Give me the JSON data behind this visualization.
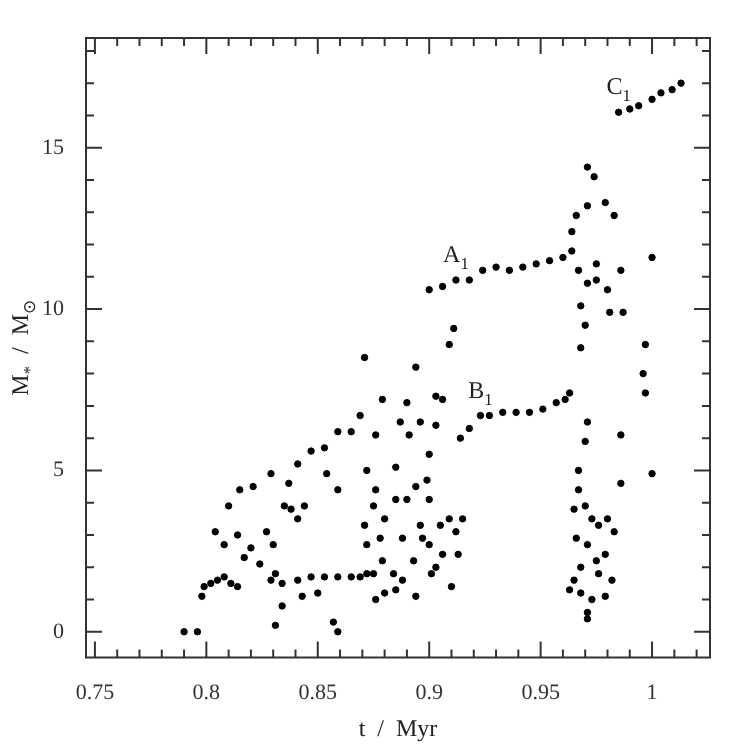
{
  "chart_data": {
    "type": "scatter",
    "xlabel": "t  /  Myr",
    "ylabel": "M$_{*}$  /  M$_{⊙}$",
    "marker": "circle",
    "legend": false,
    "grid": false,
    "xlim": [
      0.746,
      1.026
    ],
    "ylim": [
      -0.8,
      18.4
    ],
    "xticks": [
      0.75,
      {
        "value": 0.76,
        "label": null
      },
      {
        "value": 0.77,
        "label": null
      },
      {
        "value": 0.78,
        "label": null
      },
      {
        "value": 0.79,
        "label": null
      },
      0.8,
      {
        "value": 0.81,
        "label": null
      },
      {
        "value": 0.82,
        "label": null
      },
      {
        "value": 0.83,
        "label": null
      },
      {
        "value": 0.84,
        "label": null
      },
      0.85,
      {
        "value": 0.86,
        "label": null
      },
      {
        "value": 0.87,
        "label": null
      },
      {
        "value": 0.88,
        "label": null
      },
      {
        "value": 0.89,
        "label": null
      },
      0.9,
      {
        "value": 0.91,
        "label": null
      },
      {
        "value": 0.92,
        "label": null
      },
      {
        "value": 0.93,
        "label": null
      },
      {
        "value": 0.94,
        "label": null
      },
      0.95,
      {
        "value": 0.96,
        "label": null
      },
      {
        "value": 0.97,
        "label": null
      },
      {
        "value": 0.98,
        "label": null
      },
      {
        "value": 0.99,
        "label": null
      },
      1,
      {
        "value": 1.01,
        "label": null
      },
      {
        "value": 1.02,
        "label": null
      }
    ],
    "yticks": [
      0,
      {
        "value": 1,
        "label": null
      },
      {
        "value": 2,
        "label": null
      },
      {
        "value": 3,
        "label": null
      },
      {
        "value": 4,
        "label": null
      },
      5,
      {
        "value": 6,
        "label": null
      },
      {
        "value": 7,
        "label": null
      },
      {
        "value": 8,
        "label": null
      },
      {
        "value": 9,
        "label": null
      },
      10,
      {
        "value": 11,
        "label": null
      },
      {
        "value": 12,
        "label": null
      },
      {
        "value": 13,
        "label": null
      },
      {
        "value": 14,
        "label": null
      },
      15,
      {
        "value": 16,
        "label": null
      },
      {
        "value": 17,
        "label": null
      },
      {
        "value": 18,
        "label": null
      }
    ],
    "annotations": [
      {
        "text": "A$_{1}$",
        "x": 0.912,
        "y": 10.9
      },
      {
        "text": "B$_{1}$",
        "x": 0.923,
        "y": 6.7
      },
      {
        "text": "C$_{1}$",
        "x": 0.985,
        "y": 16.1
      }
    ],
    "series": [
      {
        "color": "#000000",
        "x": [
          0.79,
          0.796,
          0.798,
          0.799,
          0.802,
          0.805,
          0.808,
          0.811,
          0.814,
          0.804,
          0.81,
          0.815,
          0.821,
          0.829,
          0.841,
          0.847,
          0.853,
          0.859,
          0.865,
          0.869,
          0.871,
          0.808,
          0.814,
          0.817,
          0.82,
          0.824,
          0.827,
          0.83,
          0.831,
          0.829,
          0.831,
          0.834,
          0.835,
          0.838,
          0.841,
          0.844,
          0.837,
          0.834,
          0.841,
          0.847,
          0.853,
          0.859,
          0.865,
          0.869,
          0.872,
          0.859,
          0.857,
          0.85,
          0.854,
          0.859,
          0.843,
          0.871,
          0.875,
          0.876,
          0.88,
          0.885,
          0.89,
          0.894,
          0.899,
          0.9,
          0.872,
          0.878,
          0.879,
          0.884,
          0.888,
          0.893,
          0.896,
          0.9,
          0.905,
          0.906,
          0.909,
          0.912,
          0.915,
          0.913,
          0.903,
          0.876,
          0.885,
          0.894,
          0.901,
          0.91,
          0.888,
          0.897,
          0.88,
          0.875,
          0.872,
          0.876,
          0.879,
          0.885,
          0.887,
          0.891,
          0.89,
          0.894,
          0.896,
          0.9,
          0.903,
          0.903,
          0.906,
          0.909,
          0.911,
          0.914,
          0.918,
          0.923,
          0.927,
          0.933,
          0.939,
          0.945,
          0.951,
          0.957,
          0.961,
          0.963,
          0.9,
          0.906,
          0.912,
          0.918,
          0.924,
          0.93,
          0.936,
          0.942,
          0.948,
          0.954,
          0.96,
          0.964,
          0.964,
          0.966,
          0.985,
          0.99,
          0.994,
          1.0,
          1.004,
          1.009,
          1.013,
          0.971,
          0.974,
          0.971,
          0.979,
          0.983,
          0.967,
          0.971,
          0.975,
          0.98,
          0.968,
          0.97,
          0.968,
          0.975,
          0.986,
          0.981,
          0.987,
          1.0,
          0.997,
          0.996,
          0.997,
          0.986,
          0.971,
          0.97,
          0.967,
          1.0,
          0.986,
          0.967,
          0.965,
          0.97,
          0.973,
          0.976,
          0.98,
          0.983,
          0.966,
          0.971,
          0.975,
          0.979,
          0.968,
          0.976,
          0.982,
          0.965,
          0.968,
          0.963,
          0.973,
          0.979,
          0.971,
          0.971
        ],
        "values": [
          0.0,
          0.0,
          1.1,
          1.4,
          1.5,
          1.6,
          1.7,
          1.5,
          1.4,
          3.1,
          3.9,
          4.4,
          4.5,
          4.9,
          5.2,
          5.6,
          5.7,
          6.2,
          6.2,
          6.7,
          8.5,
          2.7,
          3.0,
          2.3,
          2.6,
          2.1,
          3.1,
          2.7,
          1.8,
          1.6,
          0.2,
          0.8,
          3.9,
          3.8,
          3.5,
          3.9,
          4.6,
          1.5,
          1.6,
          1.7,
          1.7,
          1.7,
          1.7,
          1.7,
          1.8,
          0.0,
          0.3,
          1.2,
          4.9,
          4.4,
          1.1,
          3.3,
          3.9,
          4.4,
          3.5,
          4.1,
          4.1,
          4.5,
          4.7,
          4.1,
          2.7,
          2.9,
          2.2,
          1.8,
          2.9,
          2.2,
          3.3,
          2.7,
          3.3,
          2.4,
          3.5,
          3.1,
          3.5,
          2.4,
          2.0,
          1.0,
          1.3,
          1.1,
          1.8,
          1.4,
          1.6,
          2.9,
          1.2,
          1.8,
          5.0,
          6.1,
          7.2,
          5.1,
          6.5,
          6.1,
          7.1,
          8.2,
          6.5,
          5.5,
          6.4,
          7.3,
          7.2,
          8.9,
          9.4,
          6.0,
          6.3,
          6.7,
          6.7,
          6.8,
          6.8,
          6.8,
          6.9,
          7.1,
          7.2,
          7.4,
          10.6,
          10.7,
          10.9,
          10.9,
          11.2,
          11.3,
          11.2,
          11.3,
          11.4,
          11.5,
          11.6,
          11.8,
          12.4,
          12.9,
          16.1,
          16.2,
          16.3,
          16.5,
          16.7,
          16.8,
          17.0,
          14.4,
          14.1,
          13.2,
          13.3,
          12.9,
          11.2,
          10.8,
          10.9,
          10.6,
          10.1,
          9.5,
          8.8,
          11.4,
          11.2,
          9.9,
          9.9,
          11.6,
          8.9,
          8.0,
          7.4,
          6.1,
          6.5,
          5.9,
          5.0,
          4.9,
          4.6,
          4.4,
          3.8,
          3.9,
          3.5,
          3.3,
          3.5,
          3.1,
          2.9,
          2.7,
          2.2,
          2.4,
          2.0,
          1.8,
          1.6,
          1.6,
          1.2,
          1.3,
          1.0,
          1.1,
          0.4,
          0.6
        ]
      }
    ]
  }
}
